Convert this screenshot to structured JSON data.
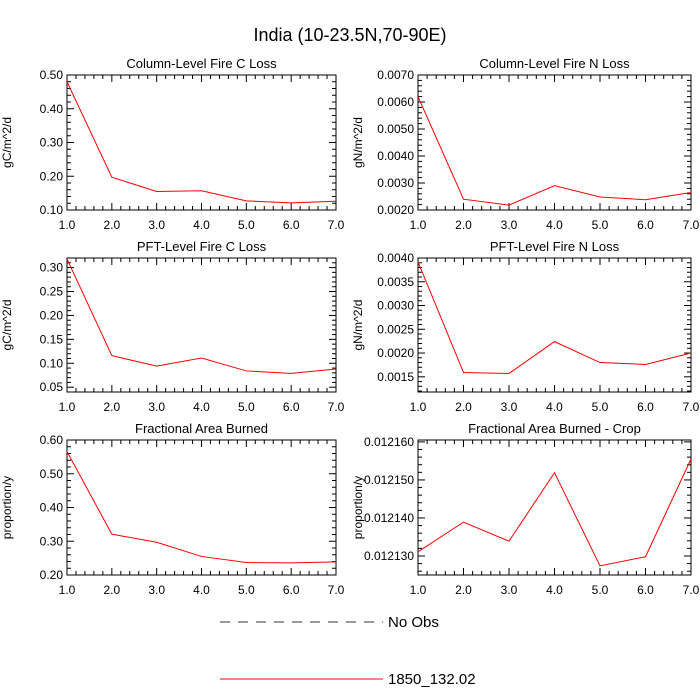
{
  "figure": {
    "title": "India (10-23.5N,70-90E)",
    "legend": [
      {
        "label": "No Obs",
        "style": "dashed",
        "color": "#333333"
      },
      {
        "label": "1850_132.02",
        "style": "solid",
        "color": "#ff0000"
      }
    ]
  },
  "chart_data": [
    {
      "type": "line",
      "title": "Column-Level Fire C Loss",
      "ylabel": "gC/m^2/d",
      "xlim": [
        1,
        7
      ],
      "ylim": [
        0.1,
        0.5
      ],
      "xticks": [
        1,
        2,
        3,
        4,
        5,
        6,
        7
      ],
      "xtick_labels": [
        "1.0",
        "2.0",
        "3.0",
        "4.0",
        "5.0",
        "6.0",
        "7.0"
      ],
      "yticks": [
        0.1,
        0.2,
        0.3,
        0.4,
        0.5
      ],
      "ytick_labels": [
        "0.10",
        "0.20",
        "0.30",
        "0.40",
        "0.50"
      ],
      "series": [
        {
          "x": [
            1,
            2,
            3,
            4,
            5,
            6,
            7
          ],
          "values": [
            0.48,
            0.197,
            0.155,
            0.157,
            0.127,
            0.121,
            0.126
          ],
          "color": "#ff0000"
        }
      ]
    },
    {
      "type": "line",
      "title": "Column-Level Fire N Loss",
      "ylabel": "gN/m^2/d",
      "xlim": [
        1,
        7
      ],
      "ylim": [
        0.002,
        0.007
      ],
      "xticks": [
        1,
        2,
        3,
        4,
        5,
        6,
        7
      ],
      "xtick_labels": [
        "1.0",
        "2.0",
        "3.0",
        "4.0",
        "5.0",
        "6.0",
        "7.0"
      ],
      "yticks": [
        0.002,
        0.003,
        0.004,
        0.005,
        0.006,
        0.007
      ],
      "ytick_labels": [
        "0.0020",
        "0.0030",
        "0.0040",
        "0.0050",
        "0.0060",
        "0.0070"
      ],
      "series": [
        {
          "x": [
            1,
            2,
            3,
            4,
            5,
            6,
            7
          ],
          "values": [
            0.0062,
            0.0024,
            0.00218,
            0.0029,
            0.00248,
            0.00238,
            0.00265
          ],
          "color": "#ff0000"
        }
      ]
    },
    {
      "type": "line",
      "title": "PFT-Level Fire C Loss",
      "ylabel": "gC/m^2/d",
      "xlim": [
        1,
        7
      ],
      "ylim": [
        0.04,
        0.32
      ],
      "xticks": [
        1,
        2,
        3,
        4,
        5,
        6,
        7
      ],
      "xtick_labels": [
        "1.0",
        "2.0",
        "3.0",
        "4.0",
        "5.0",
        "6.0",
        "7.0"
      ],
      "yticks": [
        0.05,
        0.1,
        0.15,
        0.2,
        0.25,
        0.3
      ],
      "ytick_labels": [
        "0.05",
        "0.10",
        "0.15",
        "0.20",
        "0.25",
        "0.30"
      ],
      "series": [
        {
          "x": [
            1,
            2,
            3,
            4,
            5,
            6,
            7
          ],
          "values": [
            0.318,
            0.116,
            0.094,
            0.111,
            0.084,
            0.079,
            0.088
          ],
          "color": "#ff0000"
        }
      ]
    },
    {
      "type": "line",
      "title": "PFT-Level Fire N Loss",
      "ylabel": "gN/m^2/d",
      "xlim": [
        1,
        7
      ],
      "ylim": [
        0.00118,
        0.004
      ],
      "xticks": [
        1,
        2,
        3,
        4,
        5,
        6,
        7
      ],
      "xtick_labels": [
        "1.0",
        "2.0",
        "3.0",
        "4.0",
        "5.0",
        "6.0",
        "7.0"
      ],
      "yticks": [
        0.0015,
        0.002,
        0.0025,
        0.003,
        0.0035,
        0.004
      ],
      "ytick_labels": [
        "0.0015",
        "0.0020",
        "0.0025",
        "0.0030",
        "0.0035",
        "0.0040"
      ],
      "series": [
        {
          "x": [
            1,
            2,
            3,
            4,
            5,
            6,
            7
          ],
          "values": [
            0.00392,
            0.00159,
            0.00157,
            0.00224,
            0.0018,
            0.00176,
            0.002
          ],
          "color": "#ff0000"
        }
      ]
    },
    {
      "type": "line",
      "title": "Fractional Area Burned",
      "ylabel": "proportion/y",
      "xlim": [
        1,
        7
      ],
      "ylim": [
        0.2,
        0.6
      ],
      "xticks": [
        1,
        2,
        3,
        4,
        5,
        6,
        7
      ],
      "xtick_labels": [
        "1.0",
        "2.0",
        "3.0",
        "4.0",
        "5.0",
        "6.0",
        "7.0"
      ],
      "yticks": [
        0.2,
        0.3,
        0.4,
        0.5,
        0.6
      ],
      "ytick_labels": [
        "0.20",
        "0.30",
        "0.40",
        "0.50",
        "0.60"
      ],
      "series": [
        {
          "x": [
            1,
            2,
            3,
            4,
            5,
            6,
            7
          ],
          "values": [
            0.566,
            0.321,
            0.297,
            0.255,
            0.237,
            0.236,
            0.239
          ],
          "color": "#ff0000"
        }
      ]
    },
    {
      "type": "line",
      "title": "Fractional Area Burned - Crop",
      "ylabel": "proportion/y",
      "xlim": [
        1,
        7
      ],
      "ylim": [
        0.012125,
        0.0121605
      ],
      "xticks": [
        1,
        2,
        3,
        4,
        5,
        6,
        7
      ],
      "xtick_labels": [
        "1.0",
        "2.0",
        "3.0",
        "4.0",
        "5.0",
        "6.0",
        "7.0"
      ],
      "yticks": [
        0.01213,
        0.01214,
        0.01215,
        0.01216
      ],
      "ytick_labels": [
        "0.012130",
        "0.012140",
        "0.012150",
        "0.012160"
      ],
      "series": [
        {
          "x": [
            1,
            2,
            3,
            4,
            5,
            6,
            7
          ],
          "values": [
            0.0121311,
            0.0121389,
            0.0121339,
            0.0121519,
            0.0121274,
            0.0121298,
            0.0121555
          ],
          "color": "#ff0000"
        }
      ]
    }
  ]
}
